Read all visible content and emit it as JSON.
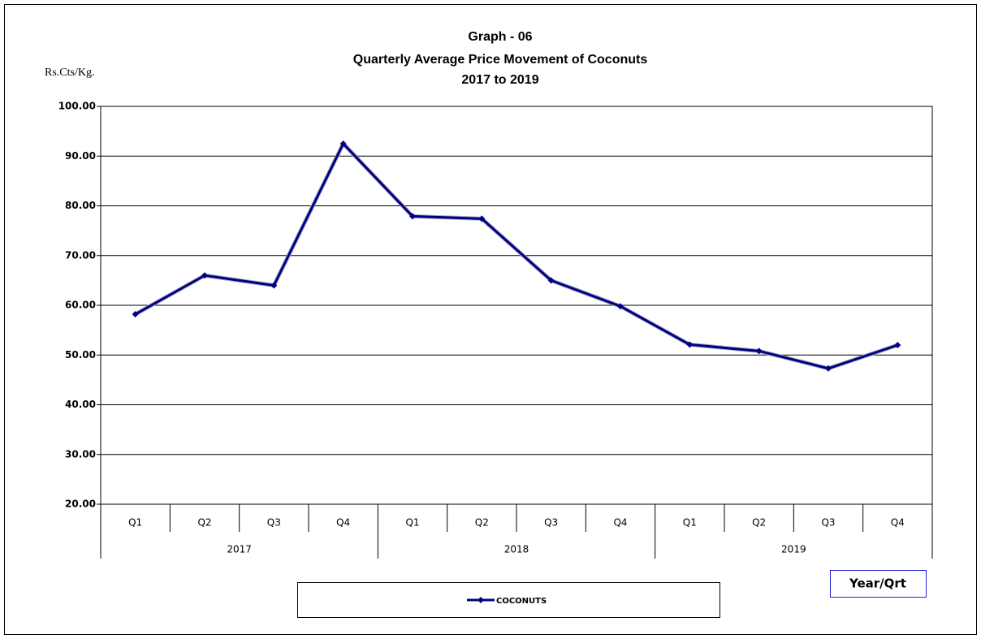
{
  "chart_data": {
    "type": "line",
    "title": [
      "Graph - 06",
      "Quarterly Average  Price Movement of Coconuts",
      "2017 to 2019"
    ],
    "y_label": "Rs.Cts/Kg.",
    "x_label": "Year/Qrt",
    "categories": [
      "Q1",
      "Q2",
      "Q3",
      "Q4",
      "Q1",
      "Q2",
      "Q3",
      "Q4",
      "Q1",
      "Q2",
      "Q3",
      "Q4"
    ],
    "groups": [
      "2017",
      "2018",
      "2019"
    ],
    "series": [
      {
        "name": "COCONUTS",
        "color": "#000080",
        "values": [
          58.2,
          66.0,
          64.0,
          92.5,
          77.9,
          77.4,
          65.0,
          59.8,
          52.1,
          50.8,
          47.3,
          52.0
        ]
      }
    ],
    "ylim": [
      20,
      100
    ],
    "yticks": [
      {
        "value": 20,
        "label": "20.00"
      },
      {
        "value": 30,
        "label": "30.00"
      },
      {
        "value": 40,
        "label": "40.00"
      },
      {
        "value": 50,
        "label": "50.00"
      },
      {
        "value": 60,
        "label": "60.00"
      },
      {
        "value": 70,
        "label": "70.00"
      },
      {
        "value": 80,
        "label": "80.00"
      },
      {
        "value": 90,
        "label": "90.00"
      },
      {
        "value": 100,
        "label": "100.00"
      }
    ],
    "grid": true,
    "legend": "bottom"
  }
}
